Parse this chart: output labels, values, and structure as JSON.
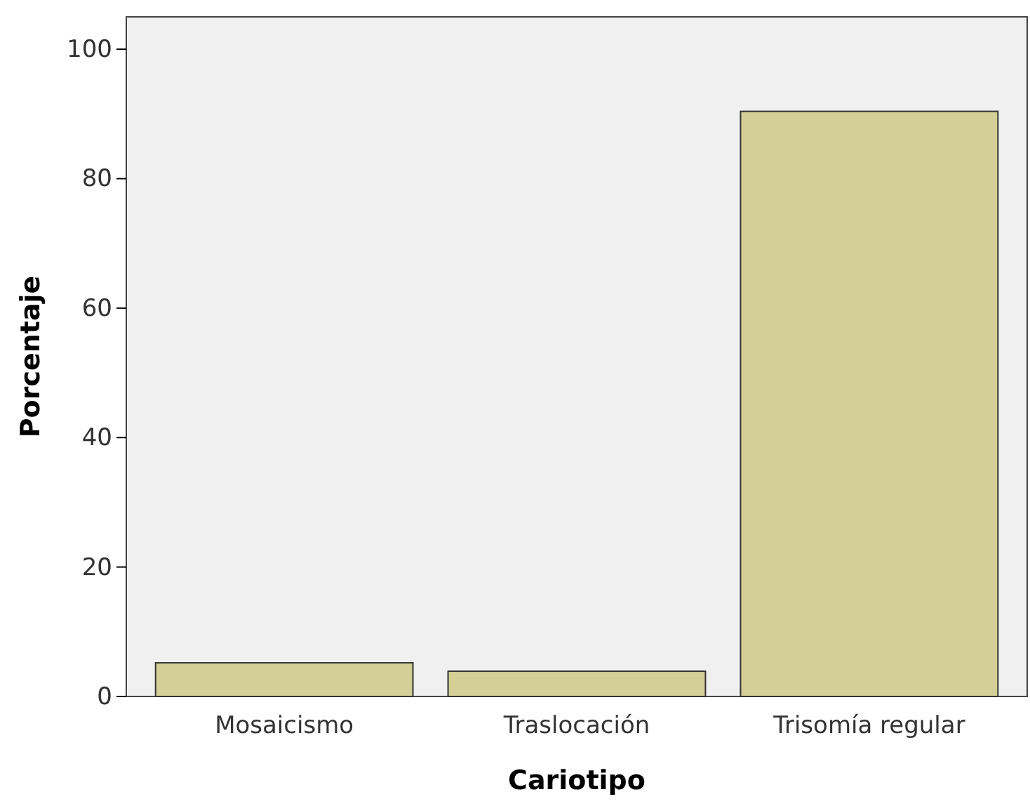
{
  "chart_data": {
    "type": "bar",
    "xlabel": "Cariotipo",
    "ylabel": "Porcentaje",
    "categories": [
      "Mosaicismo",
      "Traslocación",
      "Trisomía regular"
    ],
    "values": [
      5.2,
      3.9,
      90.4
    ],
    "color": "#d3cf96",
    "ylim": [
      0,
      105
    ],
    "yticks": [
      0,
      20,
      40,
      60,
      80,
      100
    ],
    "grid": false
  }
}
